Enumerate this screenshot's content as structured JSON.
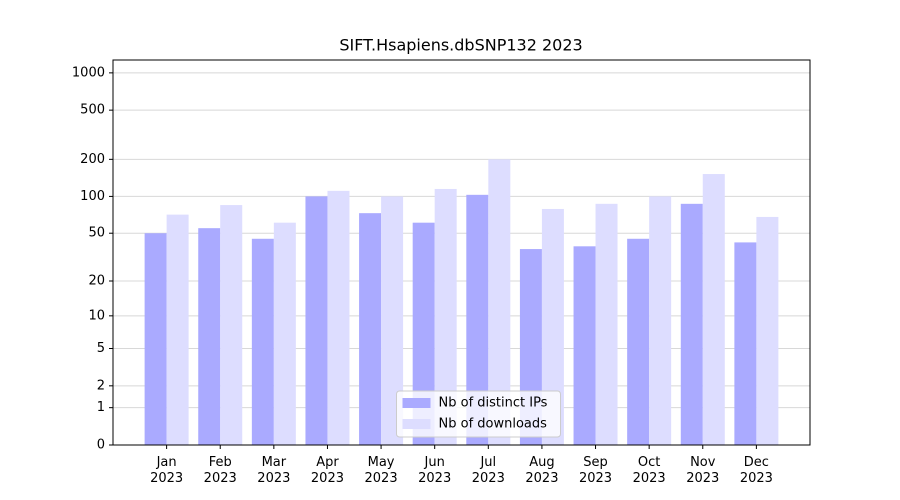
{
  "chart_data": {
    "type": "bar",
    "title": "SIFT.Hsapiens.dbSNP132 2023",
    "scale": "log1p",
    "categories": [
      [
        "Jan",
        "2023"
      ],
      [
        "Feb",
        "2023"
      ],
      [
        "Mar",
        "2023"
      ],
      [
        "Apr",
        "2023"
      ],
      [
        "May",
        "2023"
      ],
      [
        "Jun",
        "2023"
      ],
      [
        "Jul",
        "2023"
      ],
      [
        "Aug",
        "2023"
      ],
      [
        "Sep",
        "2023"
      ],
      [
        "Oct",
        "2023"
      ],
      [
        "Nov",
        "2023"
      ],
      [
        "Dec",
        "2023"
      ]
    ],
    "series": [
      {
        "name": "Nb of distinct IPs",
        "color": "#aaaaff",
        "values": [
          50,
          55,
          45,
          100,
          73,
          61,
          103,
          37,
          39,
          45,
          87,
          42
        ]
      },
      {
        "name": "Nb of downloads",
        "color": "#ddddff",
        "values": [
          71,
          85,
          61,
          111,
          100,
          115,
          200,
          79,
          87,
          100,
          152,
          68
        ]
      }
    ],
    "ylim": [
      0,
      1270
    ],
    "yticks": [
      0,
      1,
      2,
      5,
      10,
      20,
      50,
      100,
      200,
      500,
      1000
    ],
    "grid": true,
    "legend": "lower center"
  }
}
